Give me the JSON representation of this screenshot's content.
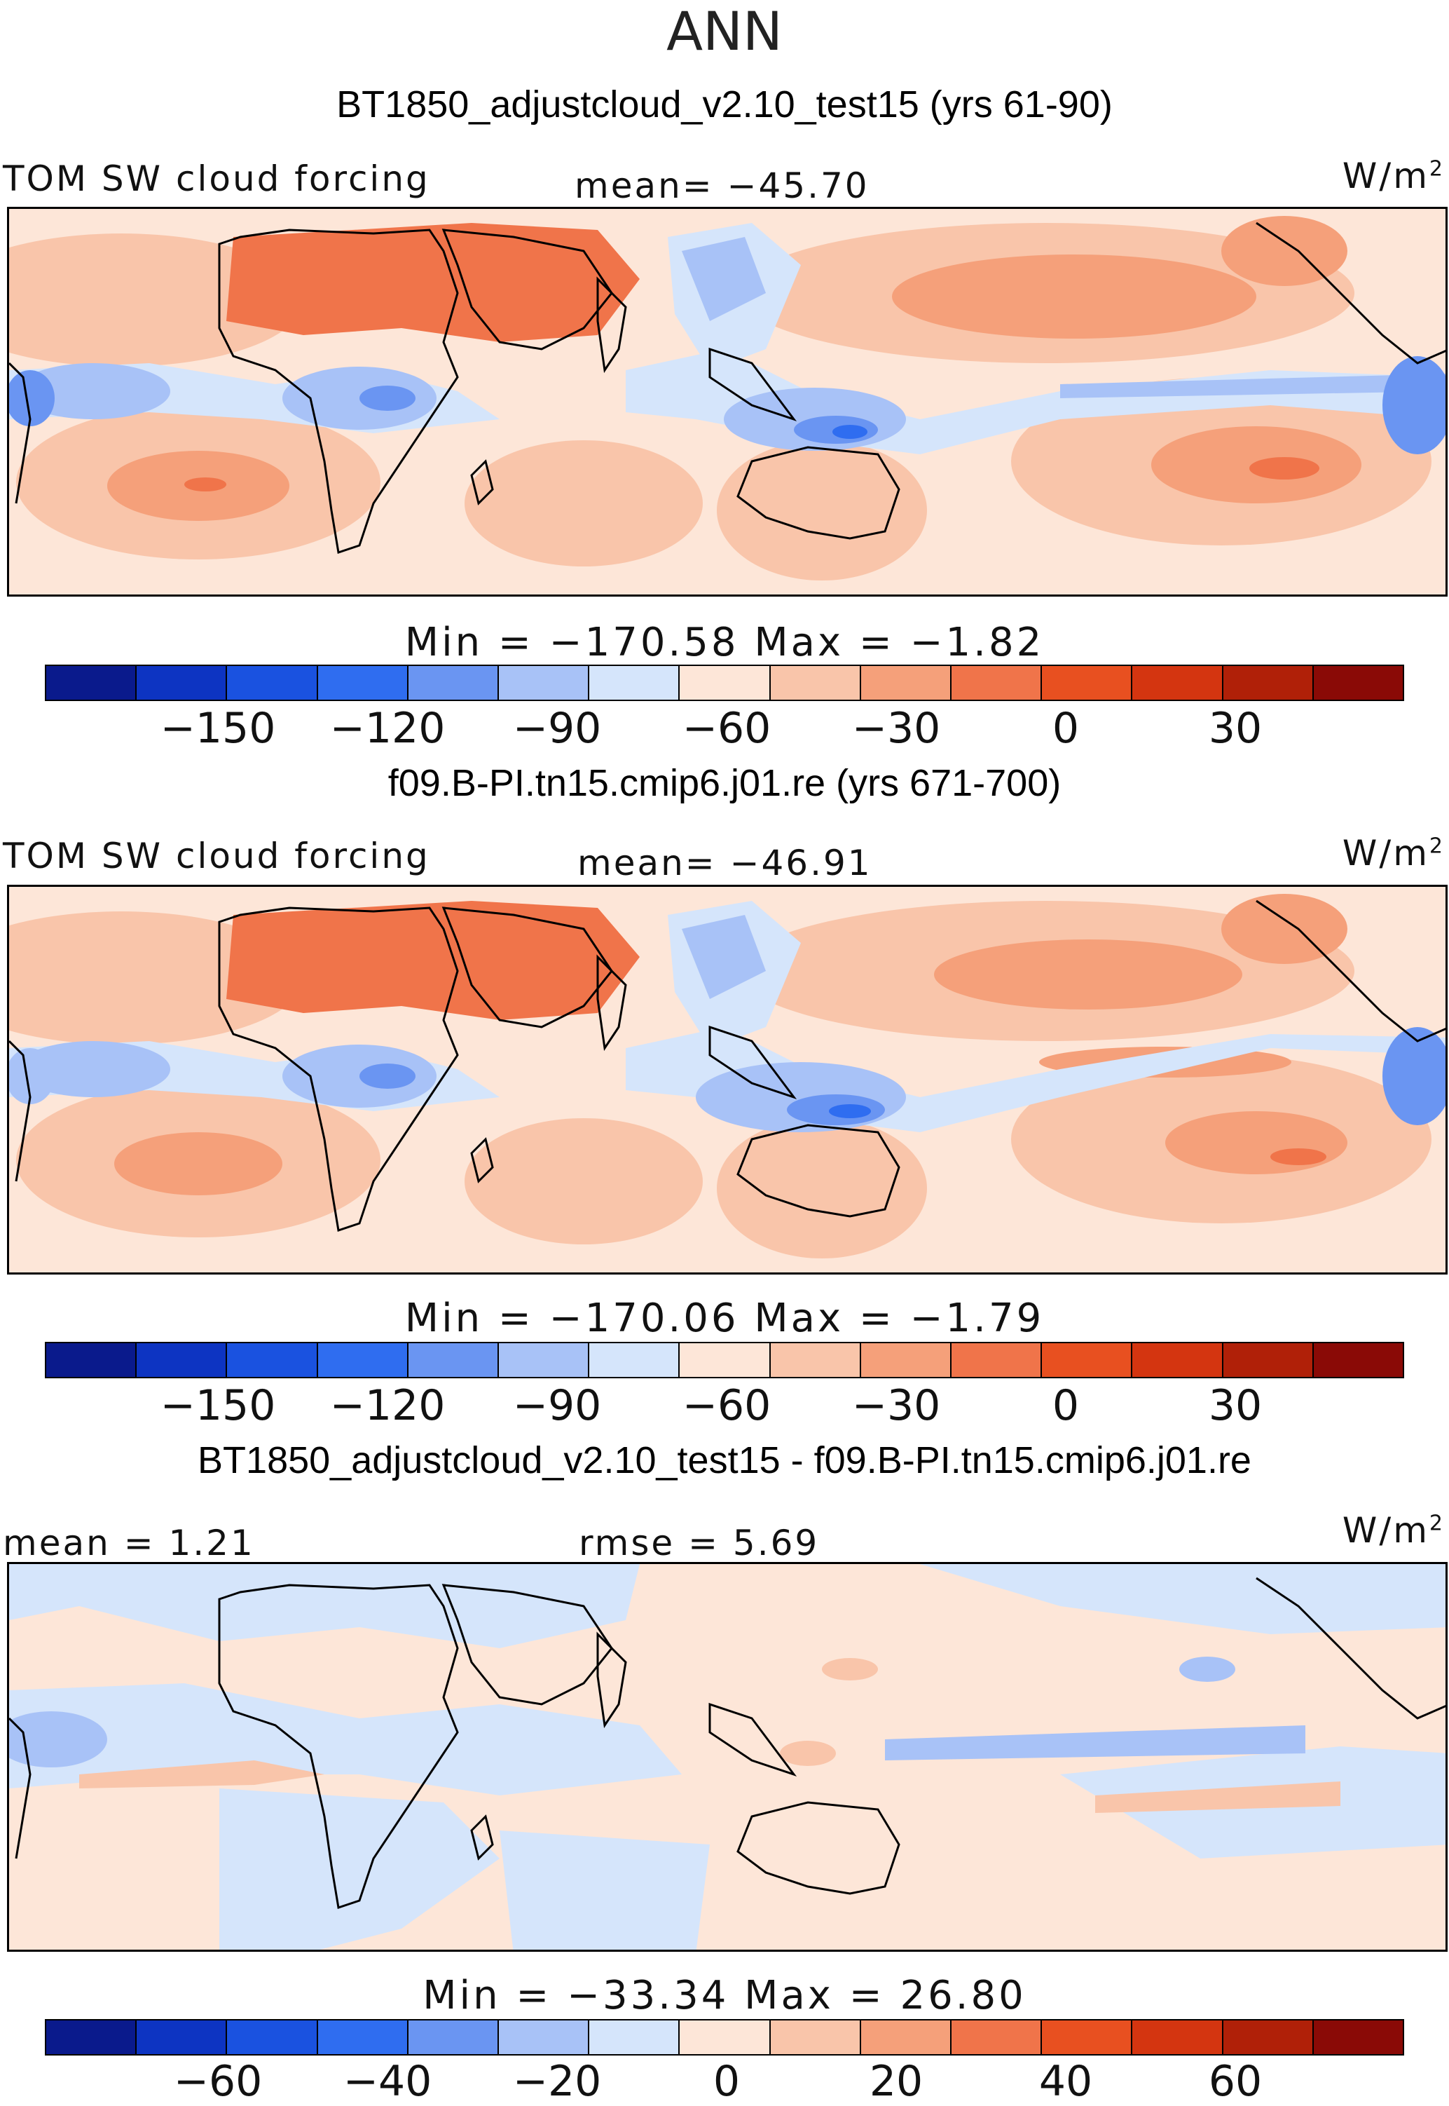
{
  "main_title": "ANN",
  "panels": [
    {
      "title": "BT1850_adjustcloud_v2.10_test15 (yrs 61-90)",
      "left_label": "TOM SW cloud forcing",
      "center_label": "mean= −45.70",
      "units": "W/m",
      "units_sup": "2",
      "minmax": "Min = −170.58 Max = −1.82",
      "ticks": [
        "−150",
        "−120",
        "−90",
        "−60",
        "−30",
        "0",
        "30"
      ]
    },
    {
      "title": "f09.B-PI.tn15.cmip6.j01.re (yrs 671-700)",
      "left_label": "TOM SW cloud forcing",
      "center_label": "mean= −46.91",
      "units": "W/m",
      "units_sup": "2",
      "minmax": "Min = −170.06 Max = −1.79",
      "ticks": [
        "−150",
        "−120",
        "−90",
        "−60",
        "−30",
        "0",
        "30"
      ]
    },
    {
      "title": "BT1850_adjustcloud_v2.10_test15 - f09.B-PI.tn15.cmip6.j01.re",
      "left_label": "mean = 1.21",
      "center_label": "rmse = 5.69",
      "units": "W/m",
      "units_sup": "2",
      "minmax": "Min = −33.34 Max = 26.80",
      "ticks": [
        "−60",
        "−40",
        "−20",
        "0",
        "20",
        "40",
        "60"
      ]
    }
  ],
  "colorbar_colors": [
    "#0a1a8c",
    "#0d34c2",
    "#1a52e0",
    "#2f6df0",
    "#6a95f2",
    "#a8c2f7",
    "#d5e5fb",
    "#fde6d8",
    "#f9c5aa",
    "#f5a07a",
    "#f0744a",
    "#e85020",
    "#d43510",
    "#b02008",
    "#8a0a06"
  ],
  "chart_data": [
    {
      "type": "heatmap",
      "title": "BT1850_adjustcloud_v2.10_test15 (yrs 61-90)",
      "variable": "TOM SW cloud forcing",
      "units": "W/m2",
      "mean": -45.7,
      "min": -170.58,
      "max": -1.82,
      "colorbar_ticks": [
        -150,
        -120,
        -90,
        -60,
        -30,
        0,
        30
      ]
    },
    {
      "type": "heatmap",
      "title": "f09.B-PI.tn15.cmip6.j01.re (yrs 671-700)",
      "variable": "TOM SW cloud forcing",
      "units": "W/m2",
      "mean": -46.91,
      "min": -170.06,
      "max": -1.79,
      "colorbar_ticks": [
        -150,
        -120,
        -90,
        -60,
        -30,
        0,
        30
      ]
    },
    {
      "type": "heatmap",
      "title": "BT1850_adjustcloud_v2.10_test15 - f09.B-PI.tn15.cmip6.j01.re",
      "units": "W/m2",
      "mean": 1.21,
      "rmse": 5.69,
      "min": -33.34,
      "max": 26.8,
      "colorbar_ticks": [
        -60,
        -40,
        -20,
        0,
        20,
        40,
        60
      ]
    }
  ]
}
